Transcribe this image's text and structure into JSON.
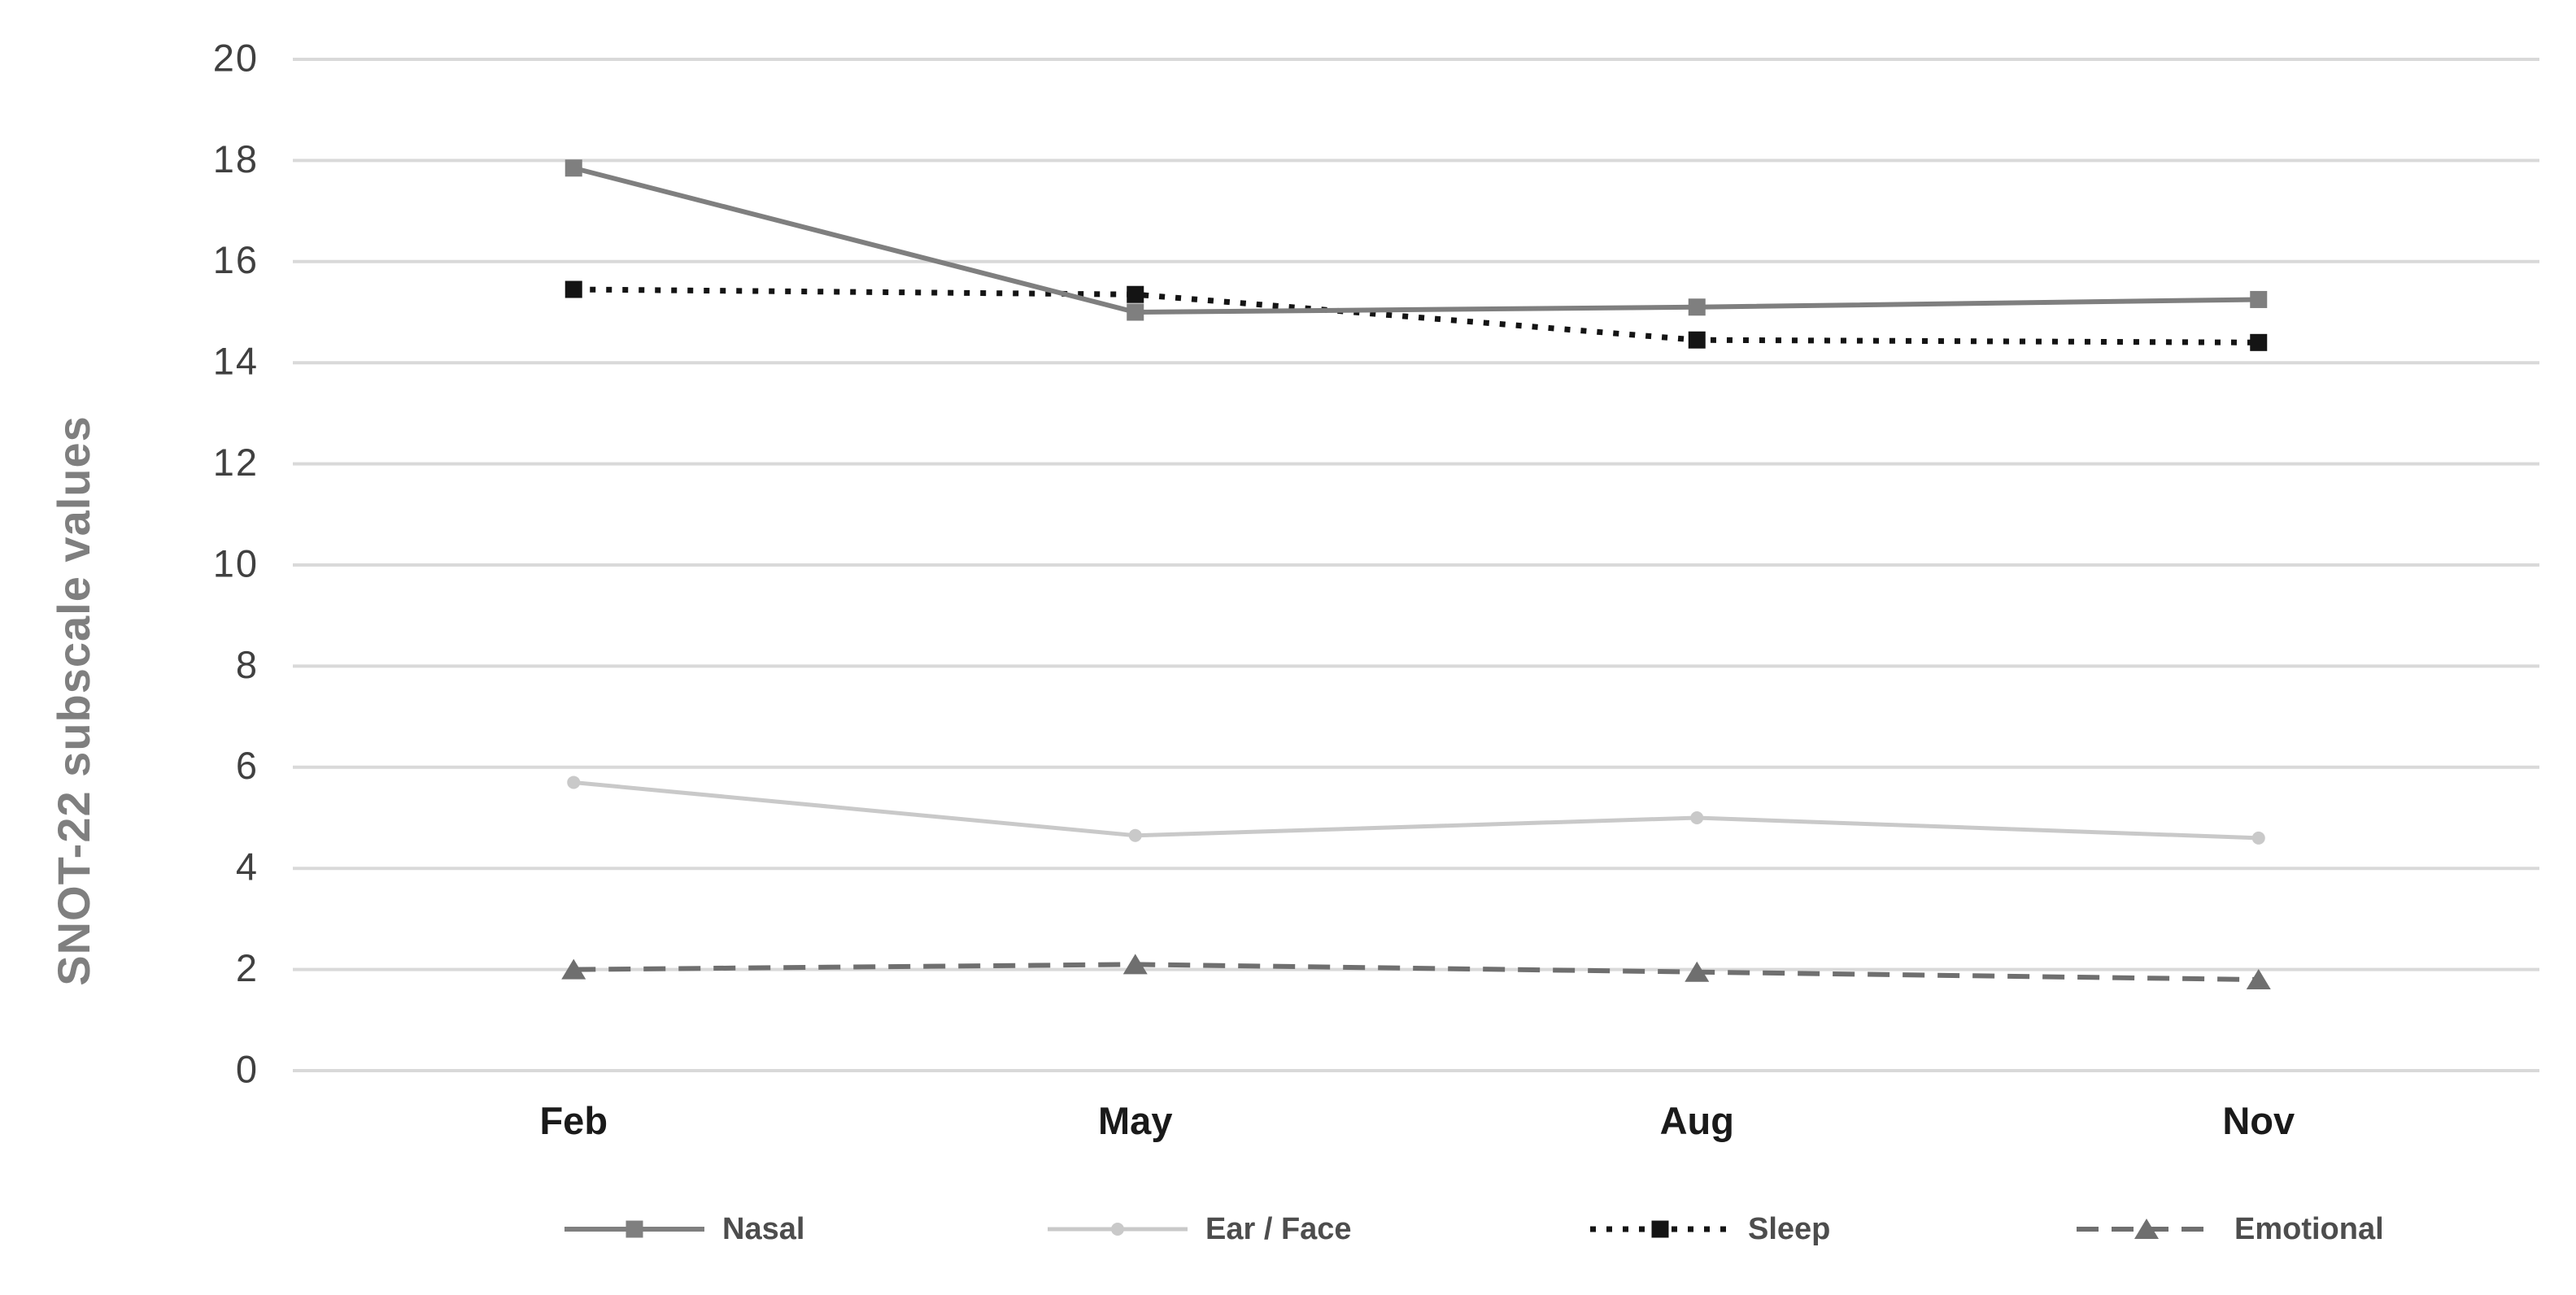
{
  "chart_data": {
    "type": "line",
    "title": "",
    "xlabel": "",
    "ylabel": "SNOT-22 subscale values",
    "categories": [
      "Feb",
      "May",
      "Aug",
      "Nov"
    ],
    "series": [
      {
        "name": "Nasal",
        "values": [
          17.85,
          15.0,
          15.1,
          15.25
        ],
        "color": "#7f7f7f",
        "line": "solid",
        "marker": "square"
      },
      {
        "name": "Ear / Face",
        "values": [
          5.7,
          4.65,
          5.0,
          4.6
        ],
        "color": "#c9c9c9",
        "line": "solid",
        "marker": "circle"
      },
      {
        "name": "Sleep",
        "values": [
          15.45,
          15.35,
          14.45,
          14.4
        ],
        "color": "#141414",
        "line": "dotted",
        "marker": "square"
      },
      {
        "name": "Emotional",
        "values": [
          2.0,
          2.1,
          1.95,
          1.8
        ],
        "color": "#6f6f6f",
        "line": "dashed",
        "marker": "triangle"
      }
    ],
    "ylim": [
      0,
      20
    ],
    "ytick_step": 2,
    "ytick_labels": [
      "0",
      "2",
      "4",
      "6",
      "8",
      "10",
      "12",
      "14",
      "16",
      "18",
      "20"
    ],
    "grid": true,
    "legend_position": "bottom"
  },
  "colors": {
    "background": "#ffffff",
    "gridline": "#d9d9d9",
    "y_tick_label": "#404040",
    "x_tick_label": "#1a1a1a",
    "y_axis_title": "#7f7f7f",
    "legend_text": "#4d4d4d"
  }
}
